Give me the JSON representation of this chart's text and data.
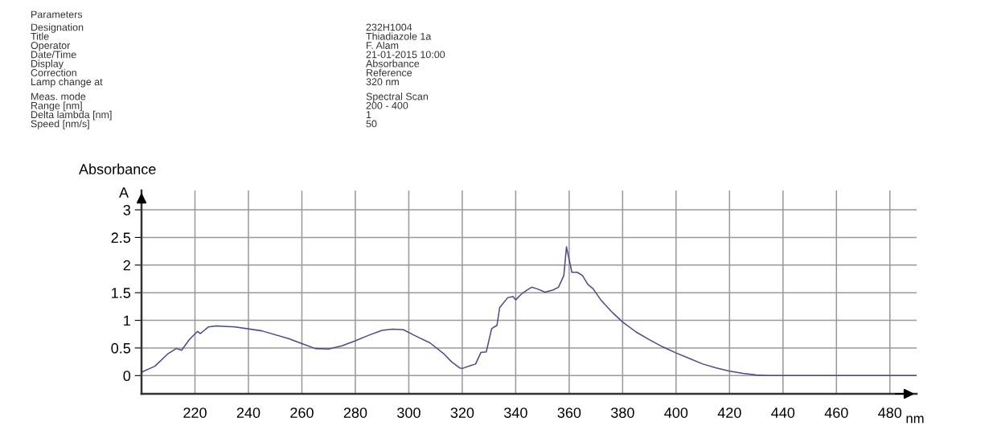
{
  "chart_data": {
    "type": "line",
    "ylabel": "Absorbance",
    "xlabel": "nm",
    "annotations": [
      "A",
      "Parameters",
      "Designation",
      "232H1004",
      "Title",
      "Thiadiazole 1a",
      "Operator",
      "F. Alam",
      "Date/Time",
      "21-01-2015 10:00",
      "Display",
      "Absorbance",
      "Correction",
      "Reference",
      "Lamp change at",
      "320 nm",
      "Meas. mode",
      "Spectral Scan",
      "Range [nm]",
      "200 - 400",
      "Delta lambda [nm]",
      "1",
      "Speed [nm/s]",
      "50"
    ],
    "series": [
      {
        "color": "#4b4b8c",
        "x": [
          200,
          205,
          210,
          213,
          215,
          218,
          221,
          222,
          225,
          228,
          235,
          245,
          255,
          260,
          265,
          270,
          275,
          280,
          285,
          290,
          294,
          298,
          302,
          308,
          313,
          316,
          319,
          320,
          323,
          325,
          327,
          329,
          331,
          333,
          334,
          337,
          339,
          340,
          342,
          344,
          346,
          348,
          351,
          354,
          356,
          358,
          359,
          361,
          363,
          365,
          367,
          369,
          372,
          376,
          380,
          385,
          390,
          395,
          400,
          405,
          410,
          415,
          420,
          425,
          430,
          435,
          450,
          490
        ],
        "values": [
          0.06,
          0.17,
          0.4,
          0.49,
          0.46,
          0.66,
          0.8,
          0.76,
          0.88,
          0.9,
          0.88,
          0.81,
          0.67,
          0.58,
          0.49,
          0.48,
          0.54,
          0.63,
          0.73,
          0.82,
          0.84,
          0.83,
          0.73,
          0.59,
          0.4,
          0.25,
          0.14,
          0.13,
          0.18,
          0.21,
          0.42,
          0.43,
          0.85,
          0.91,
          1.23,
          1.41,
          1.43,
          1.37,
          1.47,
          1.54,
          1.6,
          1.57,
          1.51,
          1.55,
          1.6,
          1.81,
          2.33,
          1.87,
          1.87,
          1.81,
          1.65,
          1.57,
          1.36,
          1.15,
          0.97,
          0.79,
          0.65,
          0.52,
          0.41,
          0.31,
          0.21,
          0.14,
          0.08,
          0.04,
          0.01,
          0,
          0,
          0
        ]
      }
    ],
    "xlim": [
      200,
      490
    ],
    "ylim": [
      -0.33,
      3.35
    ],
    "xticks": [
      220,
      240,
      260,
      280,
      300,
      320,
      340,
      360,
      380,
      400,
      420,
      440,
      460,
      480
    ],
    "yticks": [
      0,
      0.5,
      1,
      1.5,
      2,
      2.5,
      3
    ],
    "grid": true,
    "line_style": "solid",
    "marker": "none"
  }
}
